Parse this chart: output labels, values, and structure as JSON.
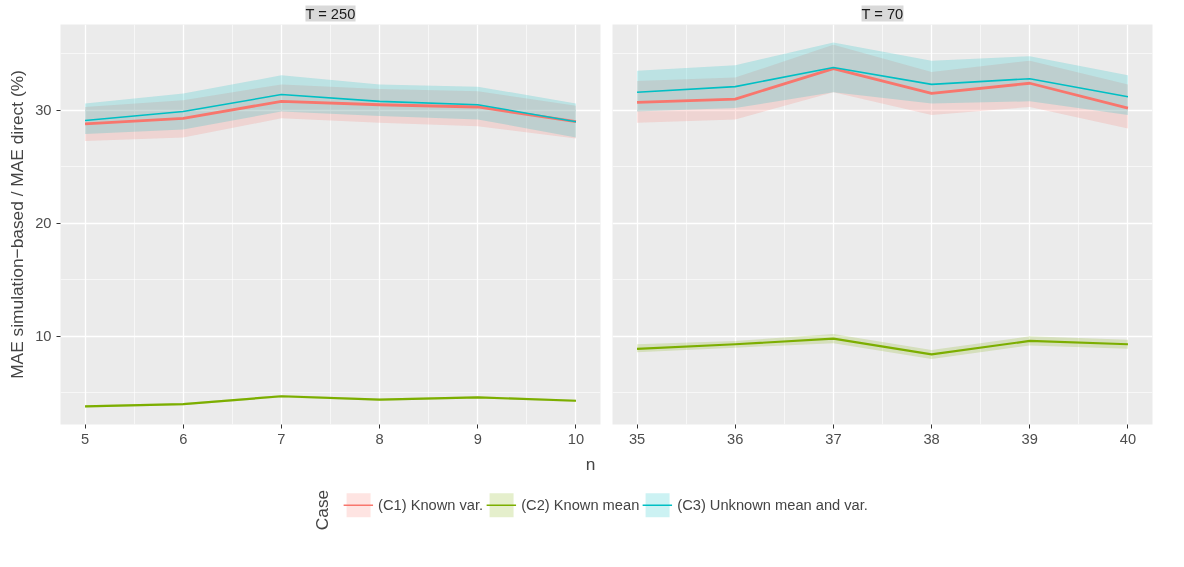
{
  "chart_data": [
    {
      "type": "line",
      "title": "T = 250",
      "xlabel": "n",
      "ylabel": "MAE simulation−based / MAE direct (%)",
      "legend_title": "Case",
      "legend": "bottom",
      "grid": true,
      "x": [
        5,
        6,
        7,
        8,
        9,
        10
      ],
      "xlim": [
        4.75,
        10.25
      ],
      "xticks": [
        5,
        6,
        7,
        8,
        9,
        10
      ],
      "ylim": [
        2.2,
        37.6
      ],
      "yticks": [
        10,
        20,
        30
      ],
      "series": [
        {
          "name": "(C1) Known var.",
          "color": "#f8766d",
          "values": [
            28.8,
            29.3,
            30.8,
            30.5,
            30.3,
            29.0
          ],
          "lower": [
            27.3,
            27.6,
            29.3,
            28.9,
            28.6,
            27.5
          ],
          "upper": [
            30.3,
            30.9,
            32.3,
            31.9,
            31.7,
            30.4
          ]
        },
        {
          "name": "(C2) Known mean",
          "color": "#7cae00",
          "values": [
            3.8,
            4.0,
            4.7,
            4.4,
            4.6,
            4.3
          ],
          "lower": [
            3.7,
            3.9,
            4.6,
            4.3,
            4.5,
            4.2
          ],
          "upper": [
            3.9,
            4.1,
            4.8,
            4.5,
            4.7,
            4.4
          ]
        },
        {
          "name": "(C3) Unknown mean and var.",
          "color": "#00bfc4",
          "values": [
            29.1,
            29.9,
            31.4,
            30.8,
            30.5,
            29.0
          ],
          "lower": [
            27.9,
            28.3,
            29.9,
            29.5,
            29.2,
            27.6
          ],
          "upper": [
            30.6,
            31.5,
            33.1,
            32.3,
            32.1,
            30.6
          ]
        }
      ]
    },
    {
      "type": "line",
      "title": "T = 70",
      "grid": true,
      "tick_labels": "x",
      "x": [
        35,
        36,
        37,
        38,
        39,
        40
      ],
      "xlim": [
        34.75,
        40.25
      ],
      "xticks": [
        35,
        36,
        37,
        38,
        39,
        40
      ],
      "ylim": [
        2.2,
        37.6
      ],
      "yticks": [
        10,
        20,
        30
      ],
      "series": [
        {
          "color": "#f8766d",
          "values": [
            30.7,
            31.0,
            33.7,
            31.5,
            32.4,
            30.2
          ],
          "lower": [
            28.9,
            29.2,
            31.6,
            29.6,
            30.3,
            28.4
          ],
          "upper": [
            32.6,
            32.9,
            35.8,
            33.4,
            34.4,
            32.3
          ]
        },
        {
          "color": "#7cae00",
          "values": [
            8.9,
            9.3,
            9.8,
            8.4,
            9.6,
            9.3
          ],
          "lower": [
            8.6,
            9.0,
            9.4,
            8.0,
            9.2,
            8.9
          ],
          "upper": [
            9.3,
            9.6,
            10.2,
            8.8,
            10.0,
            9.7
          ]
        },
        {
          "color": "#00bfc4",
          "values": [
            31.6,
            32.1,
            33.8,
            32.3,
            32.8,
            31.2
          ],
          "lower": [
            29.9,
            30.2,
            31.6,
            30.6,
            30.8,
            29.6
          ],
          "upper": [
            33.5,
            34.0,
            36.0,
            34.4,
            34.8,
            33.1
          ]
        }
      ]
    }
  ]
}
